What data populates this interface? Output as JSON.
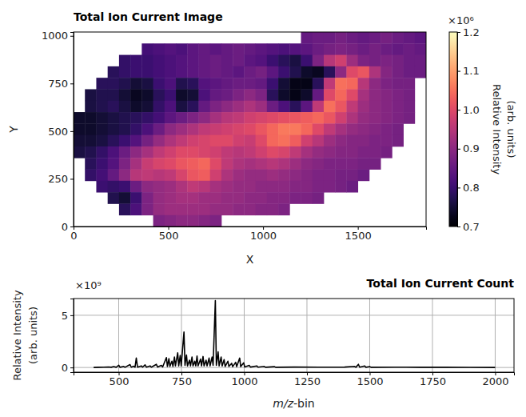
{
  "chart_data": [
    {
      "type": "heatmap",
      "title": "Total Ion Current Image",
      "x_label": "X",
      "y_label": "Y",
      "color": "magma",
      "grid": false,
      "xlim": [
        0,
        1860
      ],
      "ylim": [
        0,
        1020
      ],
      "xticks": [
        0,
        500,
        1000,
        1500
      ],
      "yticks": [
        0,
        250,
        500,
        750,
        1000
      ],
      "x": [
        30,
        90,
        150,
        210,
        270,
        330,
        390,
        450,
        510,
        570,
        630,
        690,
        750,
        810,
        870,
        930,
        990,
        1050,
        1110,
        1170,
        1230,
        1290,
        1350,
        1410,
        1470,
        1530,
        1590,
        1650,
        1710,
        1770,
        1830
      ],
      "y": [
        990,
        930,
        870,
        810,
        750,
        690,
        630,
        570,
        510,
        450,
        390,
        330,
        270,
        210,
        150,
        90,
        30
      ],
      "cells": [
        [
          null,
          null,
          null,
          null,
          null,
          null,
          null,
          null,
          null,
          null,
          null,
          null,
          null,
          null,
          null,
          null,
          null,
          null,
          null,
          null,
          0.85,
          0.86,
          0.86,
          0.87,
          0.86,
          0.85,
          0.86,
          0.87,
          0.86,
          0.85,
          0.84
        ],
        [
          null,
          null,
          null,
          null,
          null,
          null,
          0.81,
          0.82,
          0.83,
          0.82,
          0.84,
          0.85,
          0.84,
          0.85,
          0.86,
          0.85,
          0.84,
          0.83,
          0.82,
          0.83,
          0.84,
          0.86,
          0.87,
          0.88,
          0.87,
          0.86,
          0.87,
          0.86,
          0.85,
          0.86,
          0.85
        ],
        [
          null,
          null,
          null,
          null,
          0.79,
          0.8,
          0.8,
          0.81,
          0.82,
          0.83,
          0.84,
          0.85,
          0.86,
          0.85,
          0.86,
          0.84,
          0.83,
          0.8,
          0.78,
          0.76,
          0.8,
          0.88,
          0.95,
          0.98,
          0.92,
          0.88,
          0.87,
          0.88,
          0.87,
          0.86,
          0.86
        ],
        [
          null,
          null,
          null,
          0.78,
          0.79,
          0.8,
          0.8,
          0.81,
          0.82,
          0.83,
          0.84,
          0.85,
          0.86,
          0.85,
          0.84,
          0.86,
          0.87,
          0.84,
          0.8,
          0.77,
          0.74,
          0.73,
          0.78,
          0.9,
          1.0,
          1.02,
          0.94,
          0.89,
          0.87,
          0.86,
          0.86
        ],
        [
          null,
          null,
          0.78,
          0.78,
          0.77,
          0.75,
          0.76,
          0.8,
          0.82,
          0.77,
          0.78,
          0.83,
          0.84,
          0.85,
          0.86,
          0.86,
          0.85,
          0.8,
          0.75,
          0.72,
          0.72,
          0.78,
          0.96,
          1.05,
          1.04,
          0.95,
          0.9,
          0.88,
          0.87,
          0.87,
          null
        ],
        [
          null,
          0.76,
          0.77,
          0.77,
          0.75,
          0.73,
          0.74,
          0.78,
          0.8,
          0.74,
          0.75,
          0.82,
          0.85,
          0.86,
          0.88,
          0.9,
          0.88,
          0.78,
          0.74,
          0.72,
          0.74,
          0.85,
          1.0,
          1.04,
          1.0,
          0.93,
          0.9,
          0.89,
          0.88,
          0.87,
          null
        ],
        [
          null,
          0.76,
          0.77,
          0.78,
          0.76,
          0.74,
          0.75,
          0.79,
          0.82,
          0.76,
          0.78,
          0.85,
          0.88,
          0.9,
          0.92,
          0.94,
          0.92,
          0.86,
          0.82,
          0.78,
          0.84,
          0.96,
          1.05,
          1.02,
          0.96,
          0.92,
          0.9,
          0.89,
          0.88,
          0.87,
          null
        ],
        [
          0.74,
          0.74,
          0.75,
          0.76,
          0.77,
          0.78,
          0.79,
          0.81,
          0.84,
          0.86,
          0.88,
          0.9,
          0.93,
          0.95,
          0.96,
          0.98,
          0.99,
          1.0,
          1.01,
          1.02,
          1.03,
          1.04,
          1.02,
          0.98,
          0.94,
          0.91,
          0.9,
          0.89,
          0.88,
          0.87,
          null
        ],
        [
          0.74,
          0.74,
          0.75,
          0.76,
          0.77,
          0.79,
          0.82,
          0.86,
          0.9,
          0.92,
          0.94,
          0.96,
          0.97,
          0.98,
          0.99,
          1.0,
          1.02,
          1.04,
          1.06,
          1.06,
          1.04,
          1.0,
          0.96,
          0.93,
          0.91,
          0.9,
          0.89,
          0.88,
          0.87,
          null,
          null
        ],
        [
          0.75,
          0.75,
          0.76,
          0.78,
          0.8,
          0.83,
          0.87,
          0.91,
          0.94,
          0.96,
          0.98,
          0.99,
          1.0,
          1.0,
          0.98,
          0.97,
          1.0,
          1.04,
          1.05,
          1.03,
          0.98,
          0.95,
          0.92,
          0.9,
          0.89,
          0.89,
          0.88,
          0.88,
          0.87,
          null,
          null
        ],
        [
          0.76,
          0.77,
          0.79,
          0.82,
          0.86,
          0.9,
          0.93,
          0.96,
          0.98,
          1.0,
          1.0,
          0.99,
          0.98,
          0.96,
          0.95,
          0.96,
          0.98,
          1.0,
          0.99,
          0.96,
          0.93,
          0.91,
          0.9,
          0.89,
          0.89,
          0.88,
          0.88,
          0.87,
          null,
          null,
          null
        ],
        [
          null,
          0.78,
          0.8,
          0.83,
          0.88,
          0.93,
          0.97,
          0.99,
          1.0,
          1.02,
          1.03,
          1.04,
          1.0,
          0.96,
          0.94,
          0.93,
          0.94,
          0.95,
          0.94,
          0.92,
          0.9,
          0.89,
          0.88,
          0.88,
          0.88,
          0.87,
          0.87,
          null,
          null,
          null,
          null
        ],
        [
          null,
          0.79,
          0.81,
          0.85,
          0.9,
          0.95,
          0.96,
          0.95,
          0.96,
          0.99,
          1.02,
          1.03,
          0.98,
          0.94,
          0.92,
          0.91,
          0.91,
          0.92,
          0.91,
          0.9,
          0.89,
          0.88,
          0.88,
          0.87,
          0.87,
          0.86,
          null,
          null,
          null,
          null,
          null
        ],
        [
          null,
          null,
          0.8,
          0.79,
          0.8,
          0.86,
          0.9,
          0.91,
          0.92,
          0.94,
          0.96,
          0.95,
          0.93,
          0.92,
          0.91,
          0.91,
          0.9,
          0.9,
          0.9,
          0.89,
          0.89,
          0.88,
          0.88,
          0.87,
          0.86,
          null,
          null,
          null,
          null,
          null,
          null
        ],
        [
          null,
          null,
          null,
          0.77,
          0.75,
          0.8,
          0.88,
          0.91,
          0.92,
          0.93,
          0.93,
          0.92,
          0.92,
          0.91,
          0.91,
          0.9,
          0.9,
          0.89,
          0.89,
          0.88,
          0.88,
          0.87,
          null,
          null,
          null,
          null,
          null,
          null,
          null,
          null,
          null
        ],
        [
          null,
          null,
          null,
          null,
          0.78,
          0.82,
          0.88,
          0.91,
          0.92,
          0.92,
          0.92,
          0.92,
          0.91,
          0.91,
          0.9,
          0.9,
          0.89,
          0.89,
          0.88,
          null,
          null,
          null,
          null,
          null,
          null,
          null,
          null,
          null,
          null,
          null,
          null
        ],
        [
          null,
          null,
          null,
          null,
          null,
          null,
          null,
          0.88,
          0.89,
          0.9,
          0.9,
          0.89,
          0.88,
          null,
          null,
          null,
          null,
          null,
          null,
          null,
          null,
          null,
          null,
          null,
          null,
          null,
          null,
          null,
          null,
          null,
          null
        ]
      ],
      "colorbar": {
        "range": [
          0.7,
          1.2
        ],
        "ticks": [
          0.7,
          0.8,
          0.9,
          {
            "value": 1,
            "label": "1.0"
          },
          1.1,
          1.2
        ],
        "label": [
          "Relative Intensity",
          "(arb. units)"
        ],
        "offset_label": "×10⁶"
      }
    },
    {
      "type": "line",
      "title": "Total Ion Current Count",
      "x_label": "m/z-bin",
      "y_label": [
        "Relative Intensity",
        "(arb. units)"
      ],
      "y_offset_label": "×10⁹",
      "color": "#000000",
      "grid": true,
      "xlim": [
        320,
        2075
      ],
      "ylim": [
        -0.45,
        6.6
      ],
      "xticks": [
        500,
        750,
        1000,
        1250,
        1500,
        1750,
        2000
      ],
      "yticks": [
        0,
        5
      ],
      "x": [
        400,
        420,
        440,
        460,
        470,
        480,
        490,
        500,
        505,
        520,
        525,
        545,
        550,
        560,
        565,
        570,
        575,
        590,
        595,
        605,
        610,
        625,
        630,
        650,
        655,
        670,
        675,
        690,
        694,
        700,
        704,
        712,
        716,
        722,
        726,
        735,
        739,
        745,
        749,
        760,
        764,
        770,
        774,
        782,
        786,
        792,
        796,
        803,
        807,
        812,
        816,
        826,
        830,
        836,
        840,
        848,
        852,
        860,
        864,
        872,
        876,
        885,
        889,
        896,
        900,
        908,
        912,
        920,
        924,
        935,
        939,
        950,
        954,
        966,
        970,
        982,
        986,
        998,
        1002,
        1020,
        1025,
        1050,
        1055,
        1080,
        1085,
        1120,
        1125,
        1200,
        1300,
        1400,
        1440,
        1445,
        1455,
        1460,
        1480,
        1485,
        1500,
        1505,
        1600,
        1700,
        1800,
        1900,
        2000
      ],
      "series": [
        {
          "values": [
            0,
            0.02,
            0.03,
            0.05,
            0.02,
            0.08,
            0.02,
            0.22,
            0.02,
            0.1,
            0.02,
            0.28,
            0.03,
            0.12,
            0.03,
            0.9,
            0.03,
            0.15,
            0.03,
            0.25,
            0.03,
            0.15,
            0.03,
            0.3,
            0.04,
            0.2,
            0.05,
            0.95,
            0.1,
            0.85,
            0.1,
            0.6,
            0.1,
            1,
            0.15,
            1.4,
            0.15,
            1.15,
            0.15,
            3.4,
            0.2,
            1.2,
            0.15,
            0.7,
            0.15,
            1,
            0.15,
            0.6,
            0.15,
            1.1,
            0.15,
            0.8,
            0.15,
            1.05,
            0.15,
            0.7,
            0.15,
            0.9,
            0.15,
            1,
            0.2,
            6.4,
            0.2,
            1.5,
            0.15,
            1,
            0.15,
            0.75,
            0.1,
            0.6,
            0.1,
            0.4,
            0.08,
            0.5,
            0.08,
            0.9,
            0.08,
            0.45,
            0.05,
            0.2,
            0.04,
            0.15,
            0.03,
            0.1,
            0.02,
            0.08,
            0.02,
            0.04,
            0.03,
            0.04,
            0.1,
            0.02,
            0.3,
            0.03,
            0.15,
            0.02,
            0.08,
            0.02,
            0.03,
            0.02,
            0.02,
            0.01,
            0
          ]
        }
      ]
    }
  ]
}
